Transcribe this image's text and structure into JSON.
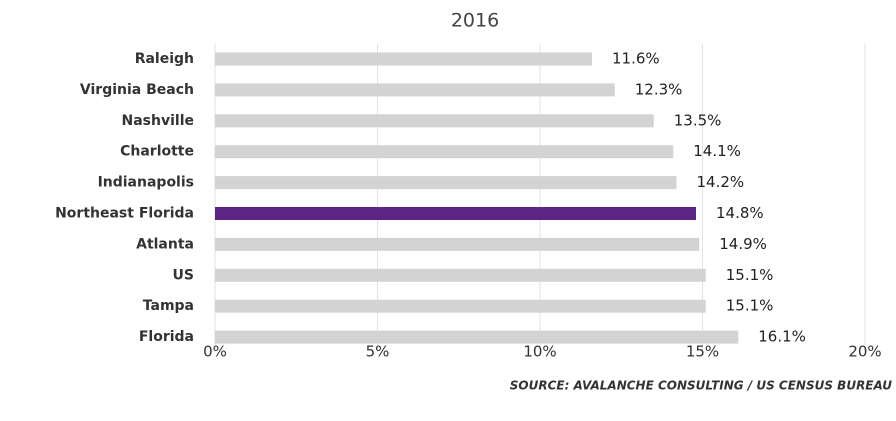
{
  "chart_data": {
    "type": "bar",
    "orientation": "horizontal",
    "title": "2016",
    "categories": [
      "Raleigh",
      "Virginia Beach",
      "Nashville",
      "Charlotte",
      "Indianapolis",
      "Northeast Florida",
      "Atlanta",
      "US",
      "Tampa",
      "Florida"
    ],
    "values": [
      11.6,
      12.3,
      13.5,
      14.1,
      14.2,
      14.8,
      14.9,
      15.1,
      15.1,
      16.1
    ],
    "value_labels": [
      "11.6%",
      "12.3%",
      "13.5%",
      "14.1%",
      "14.2%",
      "14.8%",
      "14.9%",
      "15.1%",
      "15.1%",
      "16.1%"
    ],
    "colors": [
      "#d3d3d3",
      "#d3d3d3",
      "#d3d3d3",
      "#d3d3d3",
      "#d3d3d3",
      "#5c2483",
      "#d3d3d3",
      "#d3d3d3",
      "#d3d3d3",
      "#d3d3d3"
    ],
    "xlim": [
      0,
      20
    ],
    "xticks": [
      {
        "value": 0,
        "label": "0%"
      },
      {
        "value": 5,
        "label": "5%"
      },
      {
        "value": 10,
        "label": "10%"
      },
      {
        "value": 15,
        "label": "15%"
      },
      {
        "value": 20,
        "label": "20%"
      }
    ],
    "grid": true,
    "source": "SOURCE: AVALANCHE CONSULTING / US CENSUS BUREAU"
  }
}
